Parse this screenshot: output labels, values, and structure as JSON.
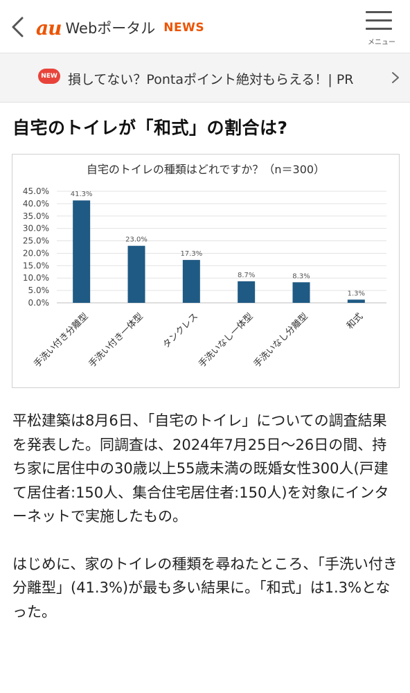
{
  "header": {
    "brand_au": "au",
    "brand_portal": "Webポータル",
    "brand_news": "NEWS",
    "menu_label": "メニュー"
  },
  "promo": {
    "badge": "NEW",
    "text": "損してない？Pontaポイント絶対もらえる！| PR"
  },
  "article": {
    "title": "自宅のトイレが「和式」の割合は?",
    "para1": "平松建築は8月6日、「自宅のトイレ」についての調査結果を発表した。同調査は、2024年7月25日～26日の間、持ち家に居住中の30歳以上55歳未満の既婚女性300人(戸建て居住者:150人、集合住宅居住者:150人)を対象にインターネットで実施したもの。",
    "para2": "はじめに、家のトイレの種類を尋ねたところ、「手洗い付き分離型」(41.3%)が最も多い結果に。「和式」は1.3%となった。"
  },
  "chart_data": {
    "type": "bar",
    "title": "自宅のトイレの種類はどれですか？（n＝300）",
    "categories": [
      "手洗い付き分離型",
      "手洗い付き一体型",
      "タンクレス",
      "手洗いなし一体型",
      "手洗いなし分離型",
      "和式"
    ],
    "values": [
      41.3,
      23.0,
      17.3,
      8.7,
      8.3,
      1.3
    ],
    "value_labels": [
      "41.3%",
      "23.0%",
      "17.3%",
      "8.7%",
      "8.3%",
      "1.3%"
    ],
    "yticks": [
      "0.0%",
      "5.0%",
      "10.0%",
      "15.0%",
      "20.0%",
      "25.0%",
      "30.0%",
      "35.0%",
      "40.0%",
      "45.0%"
    ],
    "ylim": [
      0,
      45
    ],
    "grid": true,
    "bar_color": "#1f5a84"
  }
}
